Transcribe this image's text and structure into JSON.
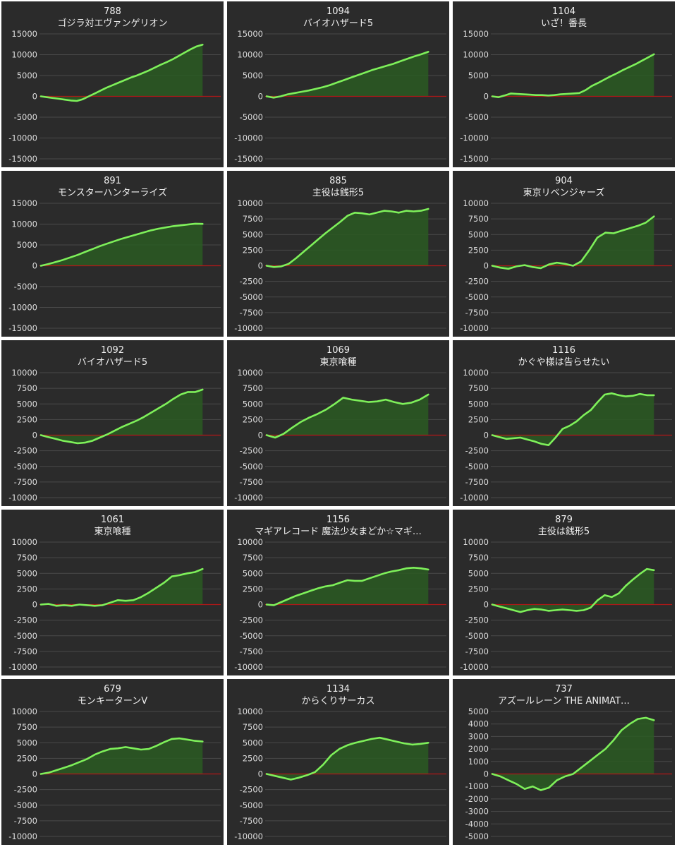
{
  "colors": {
    "panel_bg": "#2b2b2b",
    "grid": "#4a4a4a",
    "zero_line": "#b01818",
    "line": "#7ef05a",
    "area": "#2a5a22",
    "text": "#f0f0f0"
  },
  "chart_data": [
    {
      "type": "area",
      "id": "788",
      "title": "ゴジラ対エヴァンゲリオン",
      "ylim": [
        -15000,
        15000
      ],
      "yticks": [
        15000,
        10000,
        5000,
        0,
        -5000,
        -10000,
        -15000
      ],
      "values": [
        0,
        -200,
        -400,
        -600,
        -800,
        -1000,
        -1100,
        -700,
        0,
        700,
        1400,
        2100,
        2700,
        3300,
        3900,
        4500,
        5000,
        5600,
        6200,
        6900,
        7600,
        8200,
        8900,
        9700,
        10500,
        11300,
        12000,
        12400
      ]
    },
    {
      "type": "area",
      "id": "1094",
      "title": "バイオハザード5",
      "ylim": [
        -15000,
        15000
      ],
      "yticks": [
        15000,
        10000,
        5000,
        0,
        -5000,
        -10000,
        -15000
      ],
      "values": [
        0,
        -300,
        0,
        500,
        800,
        1100,
        1400,
        1800,
        2200,
        2700,
        3300,
        3900,
        4500,
        5100,
        5700,
        6300,
        6800,
        7300,
        7800,
        8400,
        9000,
        9600,
        10100,
        10700
      ]
    },
    {
      "type": "area",
      "id": "1104",
      "title": "いざ！番長",
      "ylim": [
        -15000,
        15000
      ],
      "yticks": [
        15000,
        10000,
        5000,
        0,
        -5000,
        -10000,
        -15000
      ],
      "values": [
        0,
        -200,
        200,
        700,
        600,
        500,
        400,
        300,
        300,
        200,
        300,
        500,
        600,
        700,
        800,
        1500,
        2500,
        3200,
        4000,
        4800,
        5500,
        6300,
        7000,
        7700,
        8500,
        9300,
        10100
      ]
    },
    {
      "type": "area",
      "id": "891",
      "title": "モンスターハンターライズ",
      "ylim": [
        -15000,
        15000
      ],
      "yticks": [
        15000,
        10000,
        5000,
        0,
        -5000,
        -10000,
        -15000
      ],
      "values": [
        0,
        400,
        900,
        1400,
        2000,
        2600,
        3300,
        4000,
        4700,
        5300,
        5900,
        6500,
        7000,
        7500,
        8000,
        8500,
        8900,
        9200,
        9500,
        9700,
        9900,
        10100,
        10050
      ]
    },
    {
      "type": "area",
      "id": "885",
      "title": "主役は銭形5",
      "ylim": [
        -10000,
        10000
      ],
      "yticks": [
        10000,
        7500,
        5000,
        2500,
        0,
        -2500,
        -5000,
        -7500,
        -10000
      ],
      "values": [
        0,
        -200,
        -100,
        300,
        1200,
        2200,
        3200,
        4200,
        5200,
        6100,
        7000,
        8000,
        8500,
        8400,
        8200,
        8500,
        8800,
        8700,
        8500,
        8800,
        8700,
        8800,
        9100
      ]
    },
    {
      "type": "area",
      "id": "904",
      "title": "東京リベンジャーズ",
      "ylim": [
        -10000,
        10000
      ],
      "yticks": [
        10000,
        7500,
        5000,
        2500,
        0,
        -2500,
        -5000,
        -7500,
        -10000
      ],
      "values": [
        0,
        -300,
        -500,
        -100,
        100,
        -200,
        -400,
        200,
        500,
        300,
        0,
        700,
        2500,
        4500,
        5300,
        5200,
        5600,
        6000,
        6400,
        6900,
        7900
      ]
    },
    {
      "type": "area",
      "id": "1092",
      "title": "バイオハザード5",
      "ylim": [
        -10000,
        10000
      ],
      "yticks": [
        10000,
        7500,
        5000,
        2500,
        0,
        -2500,
        -5000,
        -7500,
        -10000
      ],
      "values": [
        0,
        -300,
        -600,
        -900,
        -1100,
        -1300,
        -1200,
        -900,
        -400,
        100,
        700,
        1300,
        1800,
        2300,
        2900,
        3600,
        4300,
        5000,
        5800,
        6500,
        6900,
        6900,
        7300
      ]
    },
    {
      "type": "area",
      "id": "1069",
      "title": "東京喰種",
      "ylim": [
        -10000,
        10000
      ],
      "yticks": [
        10000,
        7500,
        5000,
        2500,
        0,
        -2500,
        -5000,
        -7500,
        -10000
      ],
      "values": [
        0,
        -400,
        200,
        1200,
        2100,
        2800,
        3400,
        4100,
        5000,
        6000,
        5700,
        5500,
        5300,
        5400,
        5700,
        5300,
        5000,
        5200,
        5700,
        6500
      ]
    },
    {
      "type": "area",
      "id": "1116",
      "title": "かぐや様は告らせたい",
      "ylim": [
        -10000,
        10000
      ],
      "yticks": [
        10000,
        7500,
        5000,
        2500,
        0,
        -2500,
        -5000,
        -7500,
        -10000
      ],
      "values": [
        0,
        -300,
        -600,
        -500,
        -400,
        -700,
        -1000,
        -1400,
        -1600,
        -400,
        1000,
        1500,
        2200,
        3200,
        4000,
        5300,
        6500,
        6700,
        6400,
        6200,
        6300,
        6600,
        6400,
        6400
      ]
    },
    {
      "type": "area",
      "id": "1061",
      "title": "東京喰種",
      "ylim": [
        -10000,
        10000
      ],
      "yticks": [
        10000,
        7500,
        5000,
        2500,
        0,
        -2500,
        -5000,
        -7500,
        -10000
      ],
      "values": [
        0,
        100,
        -200,
        -100,
        -200,
        0,
        -100,
        -200,
        -100,
        300,
        700,
        600,
        700,
        1200,
        1900,
        2700,
        3500,
        4500,
        4700,
        5000,
        5200,
        5700
      ]
    },
    {
      "type": "area",
      "id": "1156",
      "title": "マギアレコード 魔法少女まどか☆マギ…",
      "ylim": [
        -10000,
        10000
      ],
      "yticks": [
        10000,
        7500,
        5000,
        2500,
        0,
        -2500,
        -5000,
        -7500,
        -10000
      ],
      "values": [
        0,
        -100,
        400,
        900,
        1400,
        1800,
        2200,
        2600,
        2900,
        3100,
        3500,
        3900,
        3800,
        3800,
        4200,
        4600,
        5000,
        5300,
        5500,
        5800,
        5900,
        5800,
        5600
      ]
    },
    {
      "type": "area",
      "id": "879",
      "title": "主役は銭形5",
      "ylim": [
        -10000,
        10000
      ],
      "yticks": [
        10000,
        7500,
        5000,
        2500,
        0,
        -2500,
        -5000,
        -7500,
        -10000
      ],
      "values": [
        0,
        -300,
        -600,
        -900,
        -1200,
        -900,
        -700,
        -800,
        -1000,
        -900,
        -800,
        -900,
        -1000,
        -900,
        -500,
        700,
        1500,
        1200,
        1800,
        3000,
        4000,
        4900,
        5700,
        5500
      ]
    },
    {
      "type": "area",
      "id": "679",
      "title": "モンキーターンV",
      "ylim": [
        -10000,
        10000
      ],
      "yticks": [
        10000,
        7500,
        5000,
        2500,
        0,
        -2500,
        -5000,
        -7500,
        -10000
      ],
      "values": [
        0,
        200,
        600,
        1000,
        1400,
        1900,
        2400,
        3100,
        3600,
        4000,
        4100,
        4300,
        4100,
        3900,
        4000,
        4500,
        5100,
        5600,
        5700,
        5500,
        5300,
        5200
      ]
    },
    {
      "type": "area",
      "id": "1134",
      "title": "からくりサーカス",
      "ylim": [
        -10000,
        10000
      ],
      "yticks": [
        10000,
        7500,
        5000,
        2500,
        0,
        -2500,
        -5000,
        -7500,
        -10000
      ],
      "values": [
        0,
        -300,
        -600,
        -900,
        -600,
        -200,
        300,
        1500,
        3000,
        4000,
        4600,
        5000,
        5300,
        5600,
        5800,
        5500,
        5200,
        4900,
        4700,
        4800,
        5000
      ]
    },
    {
      "type": "area",
      "id": "737",
      "title": "アズールレーン THE ANIMAT…",
      "ylim": [
        -5000,
        5000
      ],
      "yticks": [
        5000,
        4000,
        3000,
        2000,
        1000,
        0,
        -1000,
        -2000,
        -3000,
        -4000,
        -5000
      ],
      "values": [
        0,
        -200,
        -500,
        -800,
        -1200,
        -1000,
        -1300,
        -1100,
        -500,
        -200,
        0,
        500,
        1000,
        1500,
        2000,
        2700,
        3500,
        4000,
        4400,
        4500,
        4300
      ]
    }
  ]
}
